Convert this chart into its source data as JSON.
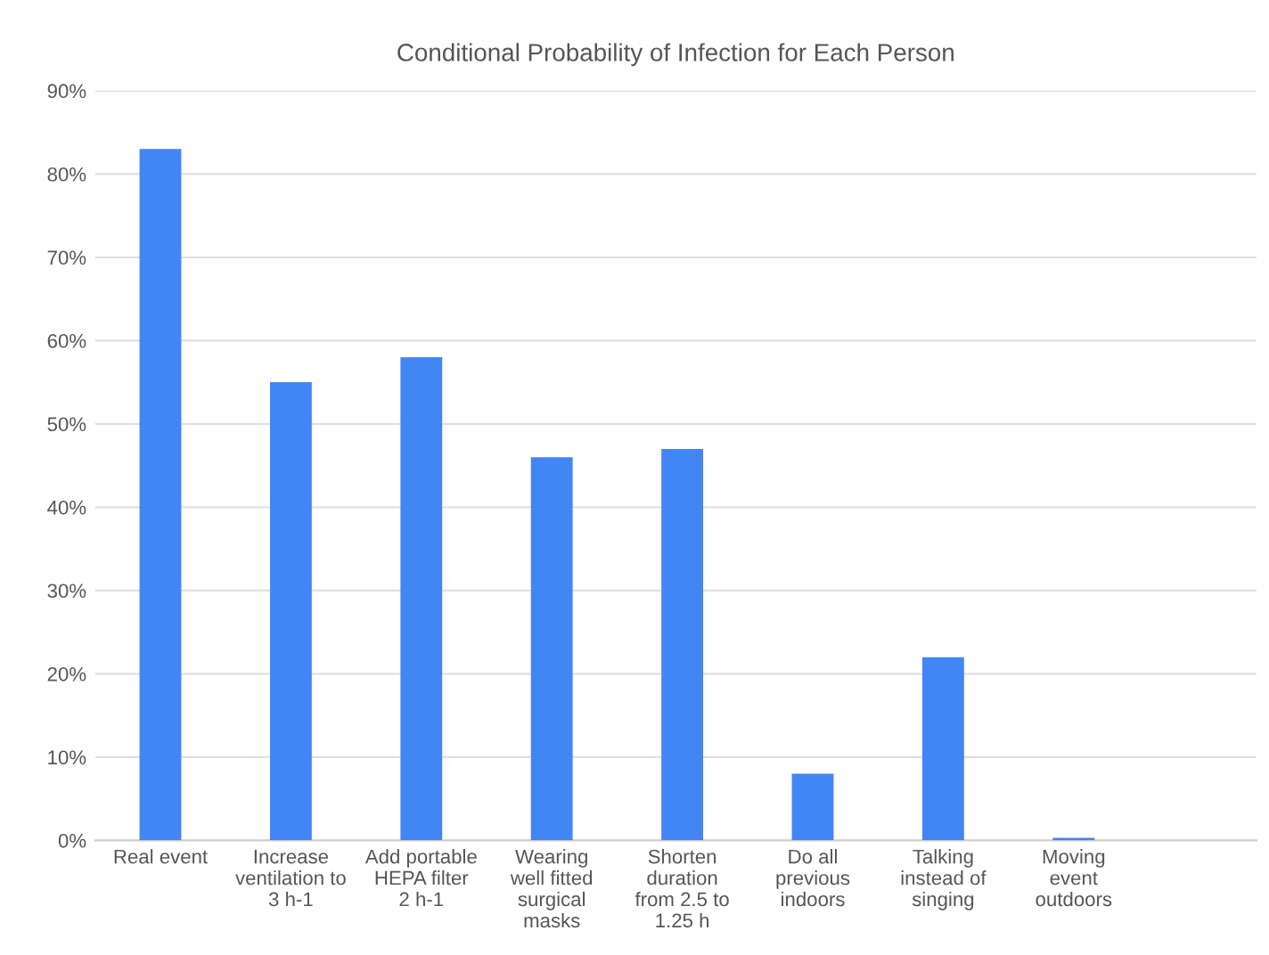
{
  "chart_data": {
    "type": "bar",
    "title": "Conditional Probability of Infection for Each Person",
    "categories": [
      "Real event",
      "Increase\nventilation to\n3 h-1",
      "Add portable\nHEPA filter\n2 h-1",
      "Wearing\nwell fitted\nsurgical\nmasks",
      "Shorten\nduration\nfrom 2.5 to\n1.25 h",
      "Do all\nprevious\nindoors",
      "Talking\ninstead of\nsinging",
      "Moving\nevent\noutdoors"
    ],
    "values": [
      83,
      55,
      58,
      46,
      47,
      8,
      22,
      0.3
    ],
    "color": "#4285f4",
    "ylim": [
      0,
      90
    ],
    "yticks": [
      {
        "value": 0,
        "label": "0%"
      },
      {
        "value": 10,
        "label": "10%"
      },
      {
        "value": 20,
        "label": "20%"
      },
      {
        "value": 30,
        "label": "30%"
      },
      {
        "value": 40,
        "label": "40%"
      },
      {
        "value": 50,
        "label": "50%"
      },
      {
        "value": 60,
        "label": "60%"
      },
      {
        "value": 70,
        "label": "70%"
      },
      {
        "value": 80,
        "label": "80%"
      },
      {
        "value": 90,
        "label": "90%"
      }
    ],
    "grid": "y",
    "legend": false
  }
}
